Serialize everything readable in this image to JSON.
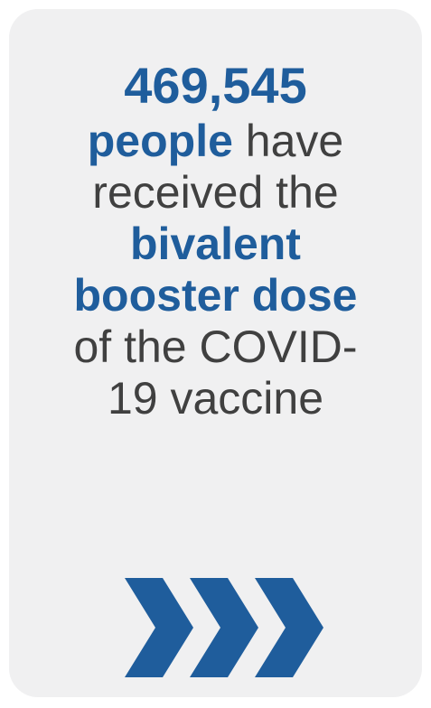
{
  "stat": {
    "number": "469,545",
    "line2_bold": "people",
    "line2_rest": " have",
    "line3": "received the",
    "line4_bold": "bivalent",
    "line5_bold": "booster dose",
    "line6": "of the COVID-",
    "line7": "19 vaccine"
  },
  "icons": {
    "arrows": "triple-chevron-right-icon"
  },
  "colors": {
    "card_background": "#f0f0f1",
    "accent_blue": "#1f5d9c",
    "body_text": "#404040"
  }
}
